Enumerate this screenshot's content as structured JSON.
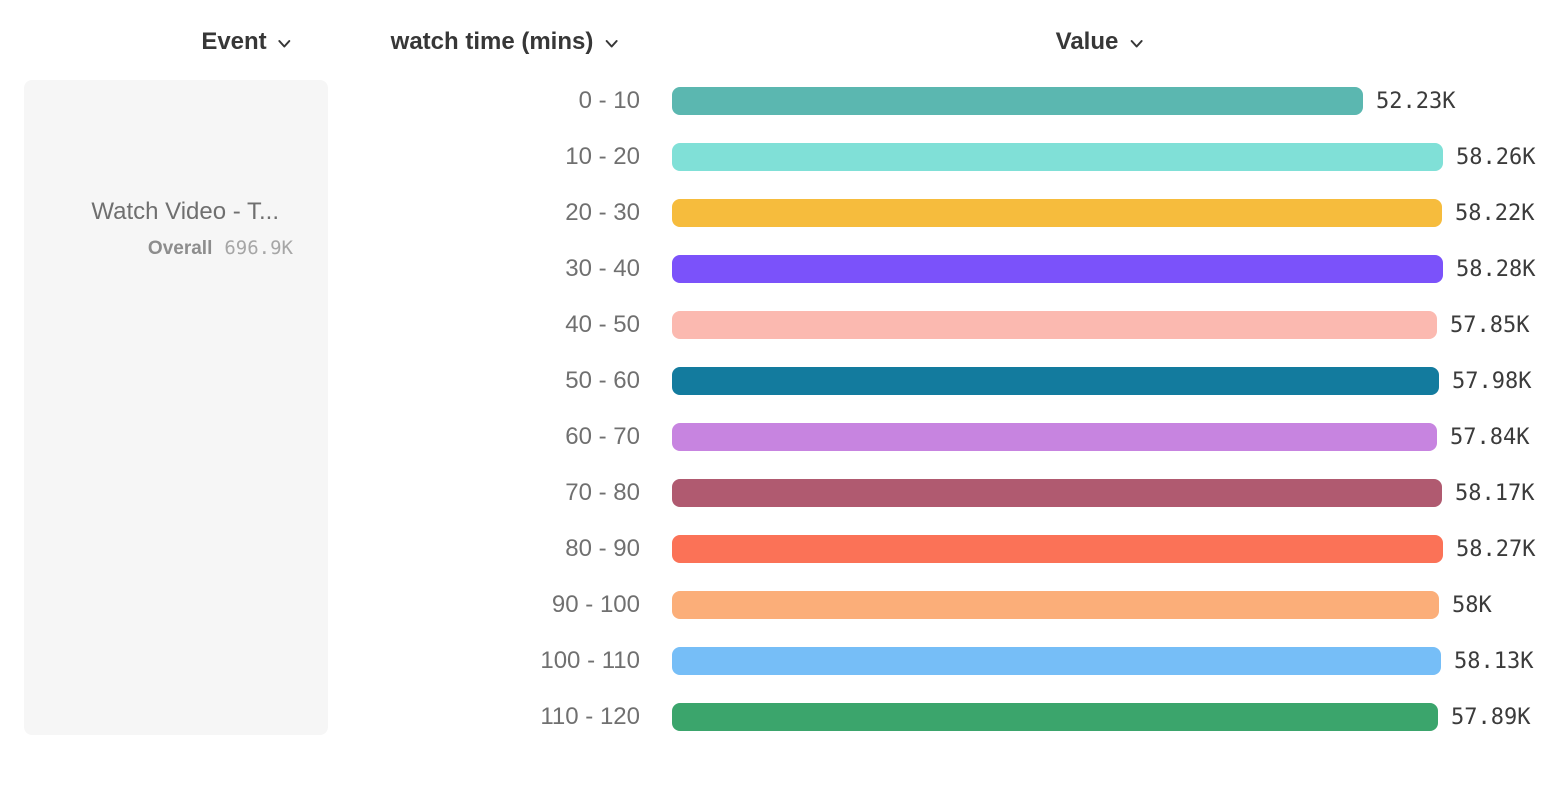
{
  "header": {
    "event_label": "Event",
    "breakdown_label": "watch time (mins)",
    "value_label": "Value"
  },
  "event_panel": {
    "title": "Watch Video - T...",
    "overall_label": "Overall",
    "overall_value": "696.9K"
  },
  "chart_data": {
    "type": "bar",
    "orientation": "horizontal",
    "title": "",
    "xlabel": "Value",
    "ylabel": "watch time (mins)",
    "categories": [
      "0 - 10",
      "10 - 20",
      "20 - 30",
      "30 - 40",
      "40 - 50",
      "50 - 60",
      "60 - 70",
      "70 - 80",
      "80 - 90",
      "90 - 100",
      "100 - 110",
      "110 - 120"
    ],
    "values": [
      52230,
      58260,
      58220,
      58280,
      57850,
      57980,
      57840,
      58170,
      58270,
      58000,
      58130,
      57890
    ],
    "value_labels": [
      "52.23K",
      "58.26K",
      "58.22K",
      "58.28K",
      "57.85K",
      "57.98K",
      "57.84K",
      "58.17K",
      "58.27K",
      "58K",
      "58.13K",
      "57.89K"
    ],
    "bar_colors": [
      "#5BB7B0",
      "#80E0D7",
      "#F6BC3D",
      "#7B52FA",
      "#FBB9B0",
      "#137B9E",
      "#C784E0",
      "#B05A70",
      "#FB7257",
      "#FBAE79",
      "#76BEF7",
      "#3BA56C"
    ],
    "xlim": [
      0,
      58280
    ],
    "grid": false,
    "legend": false
  },
  "colors": {
    "panel_background": "#F6F6F6",
    "header_text": "#373737",
    "category_text": "#707070",
    "value_text": "#3B3B3B",
    "panel_title_text": "#6F6F6F",
    "overall_label_text": "#8D8D8D",
    "overall_value_text": "#A6A6A6"
  }
}
